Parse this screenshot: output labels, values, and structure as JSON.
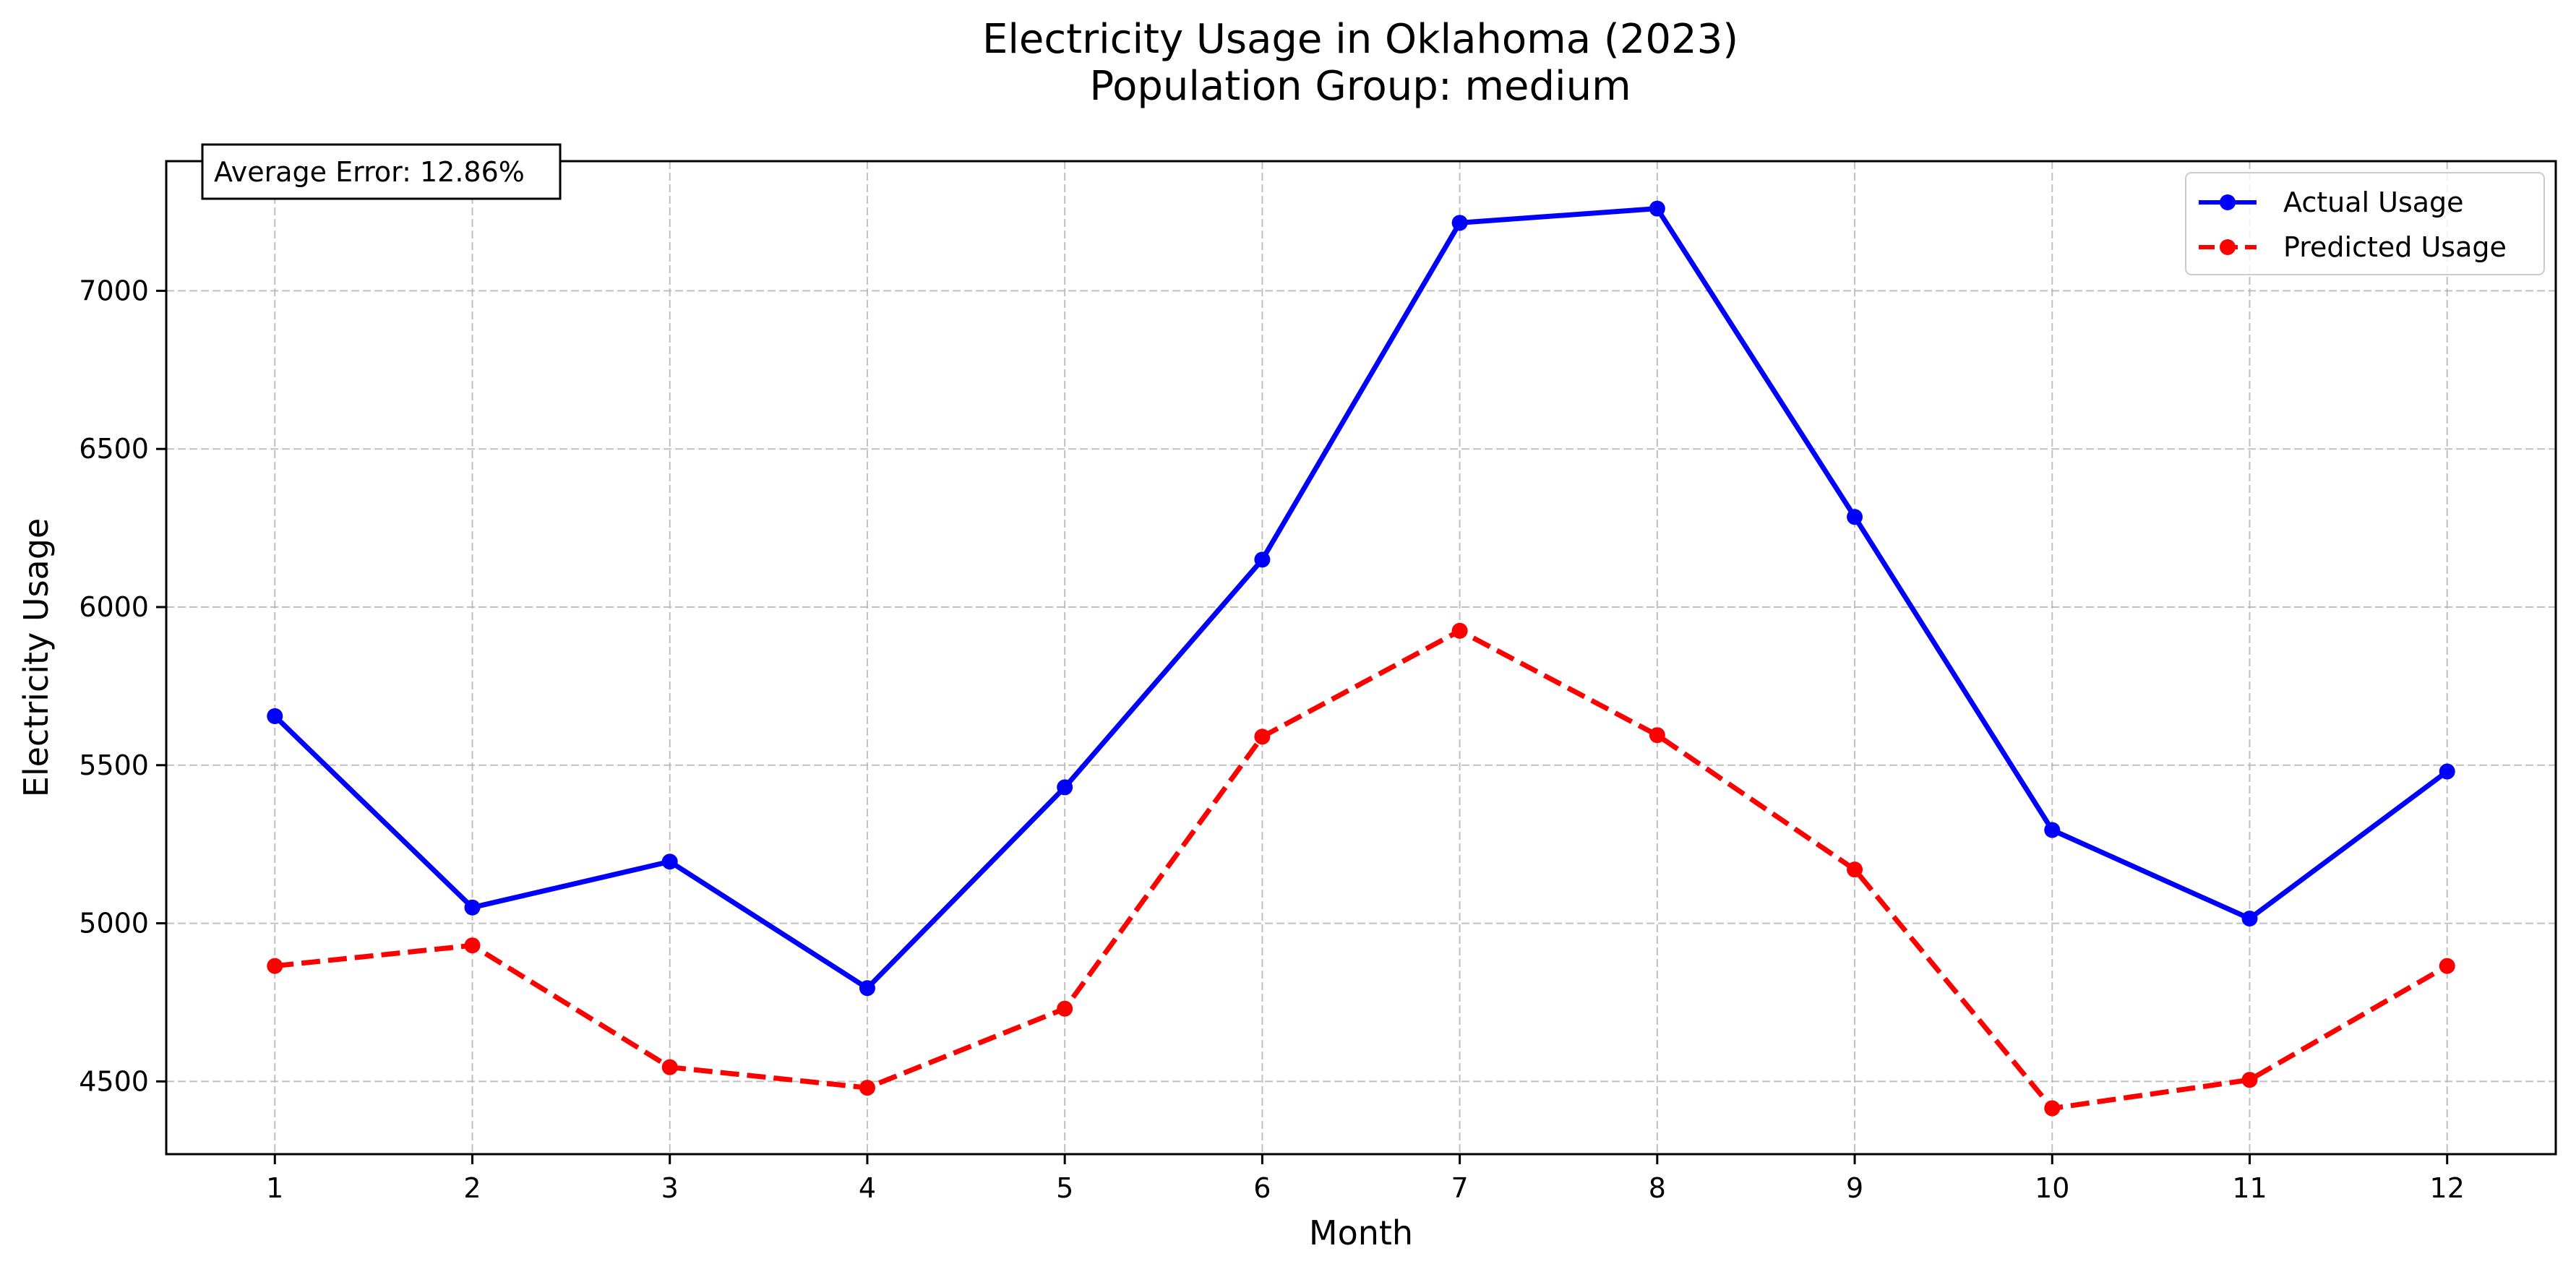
{
  "chart_data": {
    "type": "line",
    "title": "Electricity Usage in Oklahoma (2023)",
    "subtitle": "Population Group: medium",
    "xlabel": "Month",
    "ylabel": "Electricity Usage",
    "x": [
      1,
      2,
      3,
      4,
      5,
      6,
      7,
      8,
      9,
      10,
      11,
      12
    ],
    "xlim": [
      0.45,
      12.55
    ],
    "ylim": [
      4270,
      7410
    ],
    "yticks": [
      4500,
      5000,
      5500,
      6000,
      6500,
      7000
    ],
    "grid": true,
    "legend_position": "top-right",
    "annotation": "Average Error: 12.86%",
    "series": [
      {
        "name": "Actual Usage",
        "color": "#0000ff",
        "style": "solid",
        "marker": "circle",
        "values": [
          5655,
          5050,
          5195,
          4795,
          5430,
          6150,
          7215,
          7260,
          6285,
          5295,
          5015,
          5480
        ]
      },
      {
        "name": "Predicted Usage",
        "color": "#ff0000",
        "style": "dashed",
        "marker": "circle",
        "values": [
          4865,
          4930,
          4545,
          4480,
          4730,
          5590,
          5925,
          5595,
          5170,
          4415,
          4505,
          4865
        ]
      }
    ]
  }
}
